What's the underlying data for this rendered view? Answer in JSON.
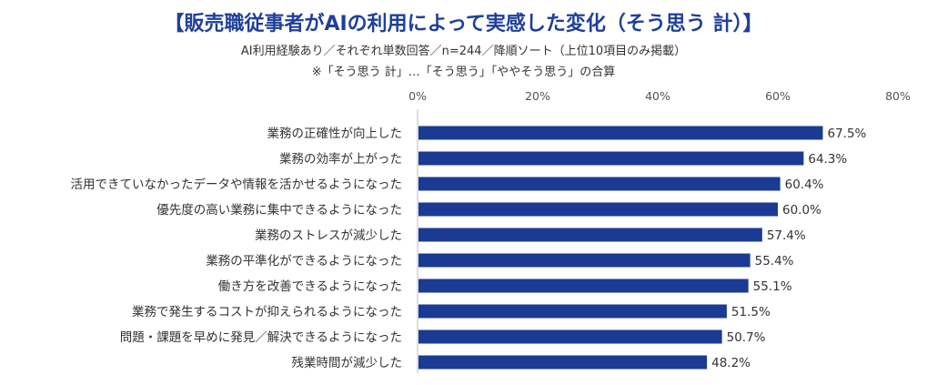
{
  "chart_data": {
    "type": "bar",
    "orientation": "horizontal",
    "title": "【販売職従事者がAIの利用によって実感した変化（そう思う 計）】",
    "subtitle": "AI利用経験あり／それぞれ単数回答／n=244／降順ソート（上位10項目のみ掲載）",
    "note": "※「そう思う 計」…「そう思う」「ややそう思う」の合算",
    "categories": [
      "業務の正確性が向上した",
      "業務の効率が上がった",
      "活用できていなかったデータや情報を活かせるようになった",
      "優先度の高い業務に集中できるようになった",
      "業務のストレスが減少した",
      "業務の平準化ができるようになった",
      "働き方を改善できるようになった",
      "業務で発生するコストが抑えられるようになった",
      "問題・課題を早めに発見／解決できるようになった",
      "残業時間が減少した"
    ],
    "values": [
      67.5,
      64.3,
      60.4,
      60.0,
      57.4,
      55.4,
      55.1,
      51.5,
      50.7,
      48.2
    ],
    "value_labels": [
      "67.5%",
      "64.3%",
      "60.4%",
      "60.0%",
      "57.4%",
      "55.4%",
      "55.1%",
      "51.5%",
      "50.7%",
      "48.2%"
    ],
    "xlim": [
      0,
      80
    ],
    "ticks": [
      "0%",
      "20%",
      "40%",
      "60%",
      "80%"
    ],
    "tick_values": [
      0,
      20,
      40,
      60,
      80
    ],
    "grid": false,
    "legend": "none",
    "bar_color": "#1a3a94",
    "title_color": "#1f3f9a"
  }
}
